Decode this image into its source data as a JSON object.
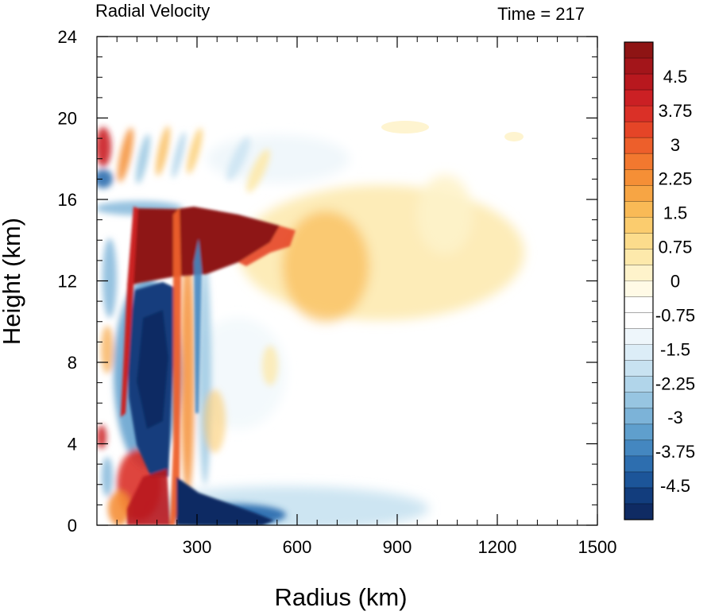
{
  "chart_data": {
    "type": "heatmap",
    "title": "Radial Velocity",
    "title_right": "Time = 217",
    "xlabel": "Radius (km)",
    "ylabel": "Height (km)",
    "xlim": [
      0,
      1500
    ],
    "ylim": [
      0,
      24
    ],
    "x_ticks": [
      300,
      600,
      900,
      1200,
      1500
    ],
    "y_ticks": [
      0,
      4,
      8,
      12,
      16,
      20,
      24
    ],
    "grid": false,
    "colorbar": {
      "placement": "right",
      "labels": [
        "4.5",
        "3.75",
        "3",
        "2.25",
        "1.5",
        "0.75",
        "0",
        "-0.75",
        "-1.5",
        "-2.25",
        "-3",
        "-3.75",
        "-4.5"
      ],
      "label_values": [
        4.5,
        3.75,
        3,
        2.25,
        1.5,
        0.75,
        0,
        -0.75,
        -1.5,
        -2.25,
        -3,
        -3.75,
        -4.5
      ],
      "min": -5.25,
      "max": 5.25,
      "levels": 28,
      "colors_top_to_bottom": [
        "#8e1414",
        "#a3151a",
        "#b8181e",
        "#cb2024",
        "#da3027",
        "#e54527",
        "#ed5f2b",
        "#f2782f",
        "#f58f36",
        "#f7a544",
        "#f9ba56",
        "#fbcc6e",
        "#fcdc8c",
        "#fde9ab",
        "#fef3cb",
        "#fffae6",
        "#ffffff",
        "#ffffff",
        "#eef6fb",
        "#dcedf7",
        "#c8e2f1",
        "#b1d5ea",
        "#97c5e1",
        "#7cb3d8",
        "#5f9fcd",
        "#4487c0",
        "#2d6eaf",
        "#1c5599",
        "#123d7d",
        "#0f2b63"
      ]
    },
    "features": [
      {
        "name": "upper-level outflow",
        "sign": "positive",
        "approx_radius_km": [
          110,
          560
        ],
        "approx_height_km": [
          12.5,
          16.5
        ],
        "peak": 5.25
      },
      {
        "name": "outflow extension",
        "sign": "positive",
        "approx_radius_km": [
          560,
          1100
        ],
        "approx_height_km": [
          9.5,
          17.5
        ],
        "peak": 2.5
      },
      {
        "name": "mid-level inflow",
        "sign": "negative",
        "approx_radius_km": [
          100,
          250
        ],
        "approx_height_km": [
          2,
          11.5
        ],
        "peak": -5.25
      },
      {
        "name": "boundary-layer inflow",
        "sign": "negative",
        "approx_radius_km": [
          240,
          700
        ],
        "approx_height_km": [
          0,
          2
        ],
        "peak": -4.0
      },
      {
        "name": "eyewall outflow band",
        "sign": "positive",
        "approx_radius_km": [
          230,
          300
        ],
        "approx_height_km": [
          0,
          12
        ],
        "peak": 3.5
      },
      {
        "name": "inner low-level outflow",
        "sign": "positive",
        "approx_radius_km": [
          110,
          230
        ],
        "approx_height_km": [
          0,
          3
        ],
        "peak": 4.5
      }
    ]
  }
}
